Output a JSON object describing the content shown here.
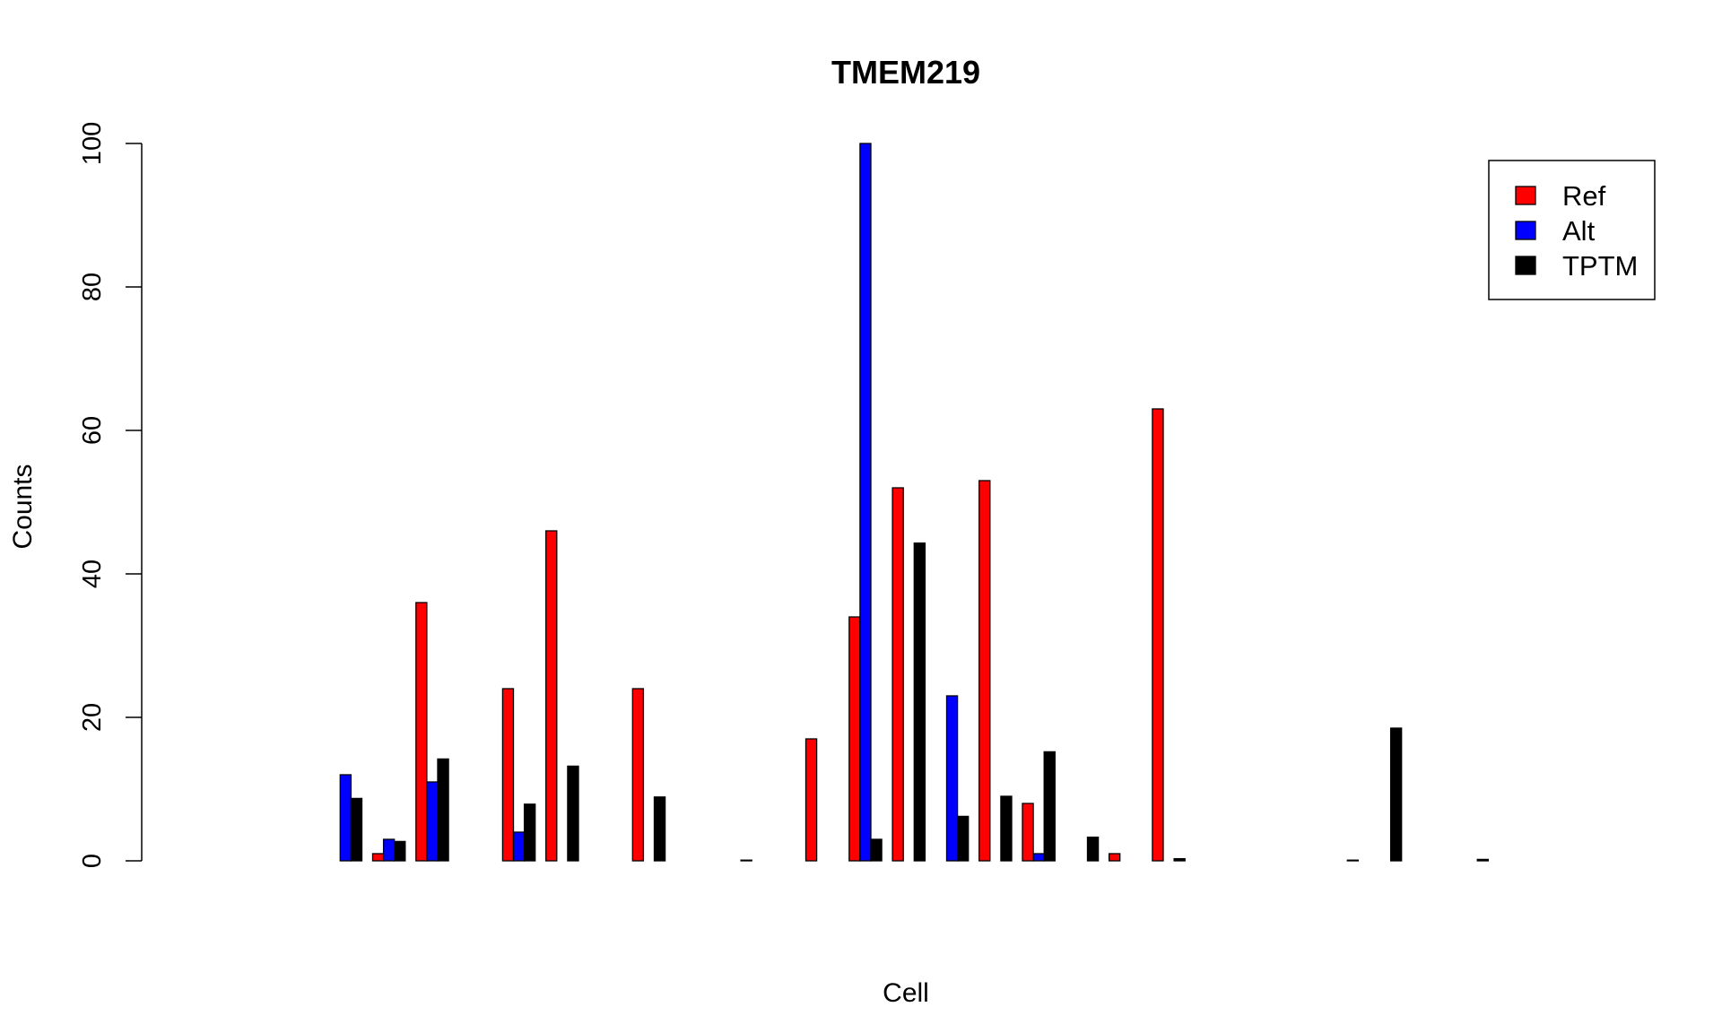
{
  "chart_data": {
    "type": "bar",
    "title": "TMEM219",
    "xlabel": "Cell",
    "ylabel": "Counts",
    "ylim": [
      0,
      100
    ],
    "yticks": [
      "0",
      "20",
      "40",
      "60",
      "80",
      "100"
    ],
    "grid": false,
    "legend_position": "top-right",
    "categories": [
      "",
      "",
      "",
      "",
      "",
      "",
      "",
      "",
      "",
      "",
      "",
      "",
      "",
      "",
      "",
      "",
      "",
      "",
      "",
      "",
      "",
      "",
      "",
      "",
      "",
      "",
      "",
      "",
      "",
      "",
      "",
      ""
    ],
    "series": [
      {
        "name": "Ref",
        "color": "#ff0000",
        "values": [
          0,
          0,
          0,
          0,
          1,
          36,
          0,
          24,
          46,
          0,
          24,
          0,
          0,
          0,
          17,
          34,
          52,
          0,
          53,
          8,
          0,
          1,
          63,
          0,
          0,
          0,
          0,
          0,
          0,
          0,
          0,
          0
        ]
      },
      {
        "name": "Alt",
        "color": "#0000ff",
        "values": [
          0,
          0,
          0,
          12,
          3,
          11,
          0,
          4,
          0,
          0,
          0,
          0,
          0,
          0,
          0,
          100,
          0,
          23,
          0,
          1,
          0,
          0,
          0,
          0,
          0,
          0,
          0,
          0,
          0,
          0,
          0,
          0
        ]
      },
      {
        "name": "TPTM",
        "color": "#000000",
        "values": [
          0,
          0,
          0,
          8.7,
          2.7,
          14.2,
          0,
          7.9,
          13.2,
          0,
          8.9,
          0,
          0.1,
          0,
          0,
          3,
          44.3,
          6.2,
          9,
          15.2,
          3.3,
          0,
          0.3,
          0,
          0,
          0,
          0.1,
          18.5,
          0,
          0.2,
          0,
          0
        ]
      }
    ],
    "bars_drawn": [
      false,
      true,
      false,
      true,
      true,
      true,
      false,
      true,
      true,
      true,
      true,
      false,
      true,
      false,
      true,
      true,
      true,
      true,
      true,
      true,
      true,
      true,
      true,
      true,
      false,
      false,
      true,
      true,
      false,
      true,
      false,
      false
    ]
  }
}
